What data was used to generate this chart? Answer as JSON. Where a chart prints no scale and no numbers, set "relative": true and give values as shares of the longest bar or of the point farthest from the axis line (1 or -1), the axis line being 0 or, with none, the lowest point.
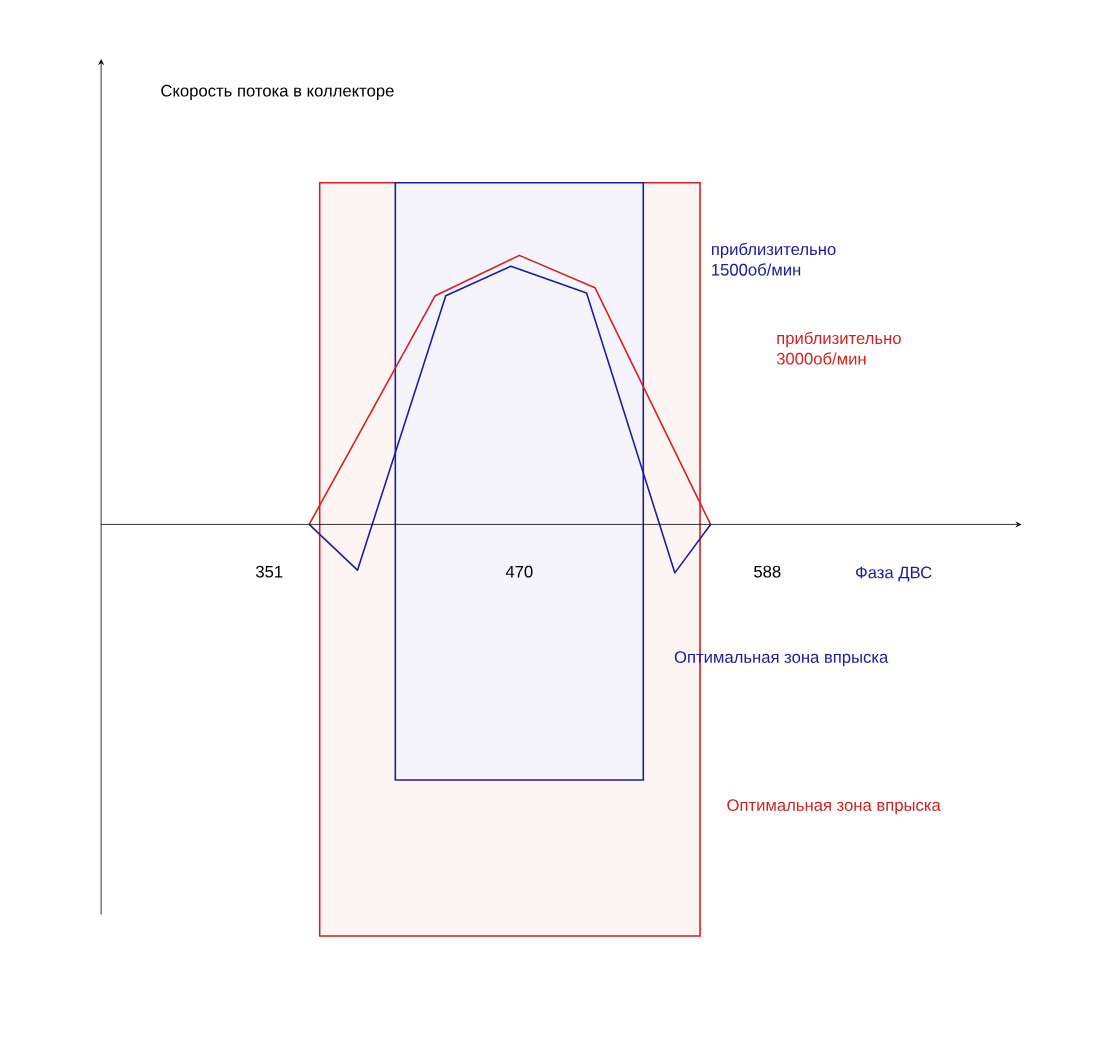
{
  "chart_data": {
    "type": "line",
    "relative": true,
    "xlabel": "Фаза ДВС",
    "annotations": [
      "Скорость потока в коллекторе"
    ],
    "xlim": [
      271,
      709
    ],
    "xticks": [
      351,
      470,
      588
    ],
    "marker": "none",
    "line_style": "solid",
    "series": [
      {
        "name": "приблизительно 1500об/мин",
        "color": "#1c1ca0",
        "x": [
          370,
          393,
          435,
          466,
          502,
          544,
          561
        ],
        "values": [
          0,
          -0.17,
          0.85,
          0.96,
          0.86,
          -0.18,
          0
        ]
      },
      {
        "name": "приблизительно 3000об/мин",
        "color": "#d42020",
        "x": [
          370,
          430,
          470,
          506,
          561
        ],
        "values": [
          0,
          0.85,
          1,
          0.88,
          0
        ]
      }
    ],
    "bands": [
      {
        "axis": "x",
        "from": 375,
        "to": 556,
        "label": "Оптимальная зона впрыска",
        "color": "#d42020"
      },
      {
        "axis": "x",
        "from": 411,
        "to": 529,
        "label": "Оптимальная зона впрыска",
        "color": "#1c1ca0"
      }
    ]
  }
}
